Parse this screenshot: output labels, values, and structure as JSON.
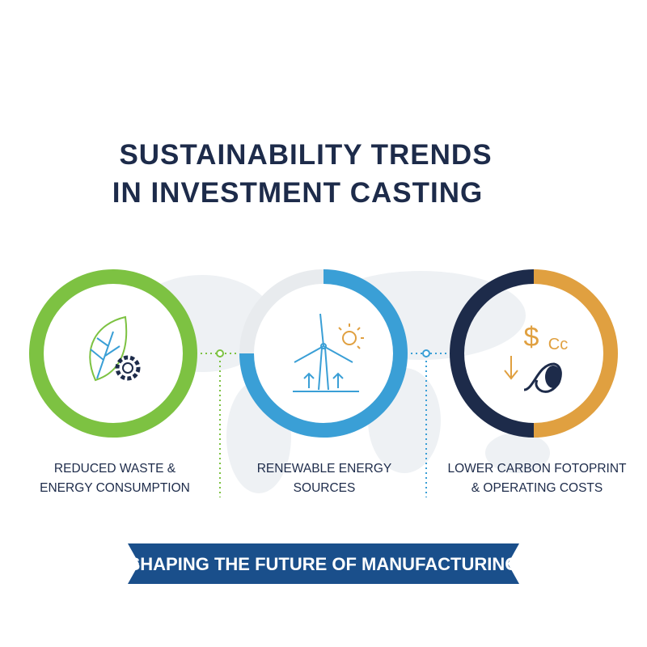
{
  "header": {
    "title_lines": [
      "SUSTAINABILITY TRENDS",
      "IN INVESTMENT CASTING"
    ]
  },
  "items": [
    {
      "label_lines": [
        "REDUCED WASTE &",
        "ENERGY CONSUMPTION"
      ]
    },
    {
      "label_lines": [
        "RENEWABLE ENERGY",
        "SOURCES"
      ]
    },
    {
      "label_lines": [
        "LOWER CARBON FOTOPRINT",
        "& OPERATING COSTS"
      ],
      "icon_labels": [
        "$",
        "Cc"
      ]
    }
  ],
  "banner": {
    "text": "SHAPING THE FUTURE OF MANUFACTURING"
  }
}
